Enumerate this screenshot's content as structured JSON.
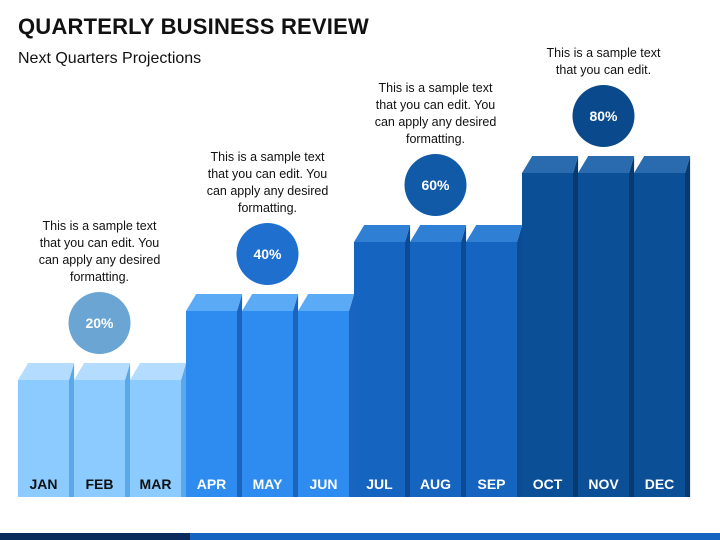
{
  "title": "QUARTERLY BUSINESS REVIEW",
  "subtitle": "Next Quarters Projections",
  "chart_data": {
    "type": "bar",
    "categories": [
      "JAN",
      "FEB",
      "MAR",
      "APR",
      "MAY",
      "JUN",
      "JUL",
      "AUG",
      "SEP",
      "OCT",
      "NOV",
      "DEC"
    ],
    "values": [
      20,
      20,
      20,
      40,
      40,
      40,
      60,
      60,
      60,
      80,
      80,
      80
    ],
    "quarters": [
      {
        "label": "20%",
        "value": 20,
        "text": "This is a sample text that you can edit. You can apply any desired formatting.",
        "color": "#8ccbff",
        "top_color": "#b3dcff",
        "side_color": "#5aa8ea",
        "badge_color": "#6aa5d4"
      },
      {
        "label": "40%",
        "value": 40,
        "text": "This is a sample text that you can edit. You can apply any desired formatting.",
        "color": "#2e8cf0",
        "top_color": "#5aaaf5",
        "side_color": "#1a64bd",
        "badge_color": "#1f6fcf"
      },
      {
        "label": "60%",
        "value": 60,
        "text": "This is a sample text that you can edit. You can apply any desired formatting.",
        "color": "#1565c0",
        "top_color": "#2f7fd4",
        "side_color": "#0d4a94",
        "badge_color": "#115aa8"
      },
      {
        "label": "80%",
        "value": 80,
        "text": "This is a sample text that you can edit.",
        "color": "#0b4f96",
        "top_color": "#2a6bb0",
        "side_color": "#083a70",
        "badge_color": "#0a4a8c"
      }
    ],
    "ylim": [
      0,
      100
    ],
    "grid": false
  }
}
